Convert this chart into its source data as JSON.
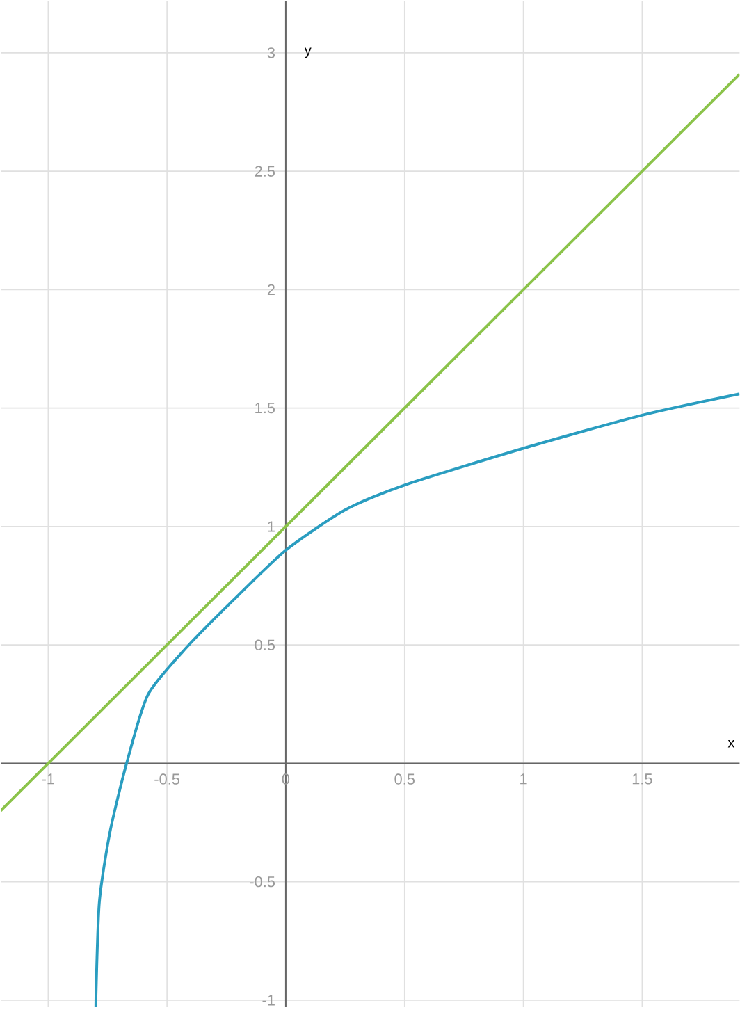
{
  "chart_data": {
    "type": "line",
    "xlabel": "x",
    "ylabel": "y",
    "xlim": [
      -1.2,
      1.91
    ],
    "ylim": [
      -1.03,
      3.22
    ],
    "xticks": [
      -1,
      -0.5,
      0,
      0.5,
      1,
      1.5
    ],
    "yticks": [
      -1,
      -0.5,
      {
        "value": 0,
        "label": null
      },
      0.5,
      1,
      1.5,
      2,
      2.5,
      3
    ],
    "grid": true,
    "series": [
      {
        "color": "#8bc34a",
        "x": [
          -1.2,
          1.91
        ],
        "values": [
          -0.2,
          2.91
        ]
      },
      {
        "color": "#2a9dc0",
        "x": [
          -0.8,
          -0.785,
          -0.74,
          -0.67,
          -0.58,
          -0.417,
          -0.22,
          0,
          0.25,
          0.5,
          1,
          1.5,
          1.91
        ],
        "values": [
          -1.03,
          -0.59,
          -0.29,
          0,
          0.29,
          0.49,
          0.69,
          0.9,
          1.07,
          1.175,
          1.33,
          1.47,
          1.56
        ]
      }
    ]
  }
}
